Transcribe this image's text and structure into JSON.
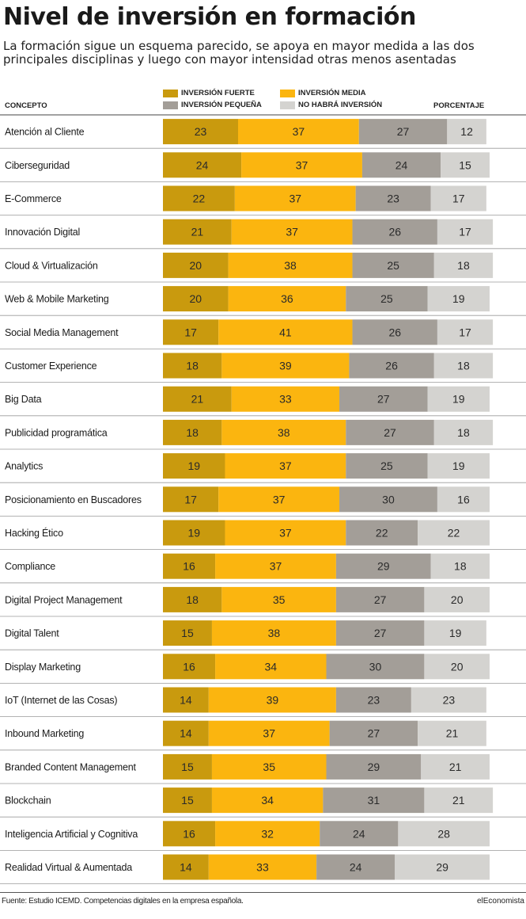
{
  "title": "Nivel de inversión en formación",
  "subtitle": "La formación sigue un esquema parecido, se apoya en mayor medida a las dos principales disciplinas y luego con mayor intensidad otras menos asentadas",
  "headers": {
    "concept": "CONCEPTO",
    "percentage": "PORCENTAJE"
  },
  "legend": [
    {
      "label": "INVERSIÓN FUERTE",
      "color": "#c99a0e"
    },
    {
      "label": "INVERSIÓN MEDIA",
      "color": "#fbb50f"
    },
    {
      "label": "INVERSIÓN PEQUEÑA",
      "color": "#a39e98"
    },
    {
      "label": "NO HABRÁ INVERSIÓN",
      "color": "#d4d3d0"
    }
  ],
  "footer": {
    "source": "Fuente: Estudio ICEMD. Competencias digitales en la empresa española.",
    "brand": "elEconomista"
  },
  "chart_data": {
    "type": "bar",
    "stacked": true,
    "orientation": "horizontal",
    "categories": [
      "Atención al Cliente",
      "Ciberseguridad",
      "E-Commerce",
      "Innovación Digital",
      "Cloud & Virtualización",
      "Web & Mobile Marketing",
      "Social Media Management",
      "Customer Experience",
      "Big Data",
      "Publicidad programática",
      "Analytics",
      "Posicionamiento en Buscadores",
      "Hacking Ético",
      "Compliance",
      "Digital Project Management",
      "Digital Talent",
      "Display Marketing",
      "IoT (Internet de las Cosas)",
      "Inbound Marketing",
      "Branded Content Management",
      "Blockchain",
      "Inteligencia Artificial y Cognitiva",
      "Realidad Virtual & Aumentada"
    ],
    "series": [
      {
        "name": "INVERSIÓN FUERTE",
        "color": "#c99a0e",
        "values": [
          23,
          24,
          22,
          21,
          20,
          20,
          17,
          18,
          21,
          18,
          19,
          17,
          19,
          16,
          18,
          15,
          16,
          14,
          14,
          15,
          15,
          16,
          14
        ]
      },
      {
        "name": "INVERSIÓN MEDIA",
        "color": "#fbb50f",
        "values": [
          37,
          37,
          37,
          37,
          38,
          36,
          41,
          39,
          33,
          38,
          37,
          37,
          37,
          37,
          35,
          38,
          34,
          39,
          37,
          35,
          34,
          32,
          33
        ]
      },
      {
        "name": "INVERSIÓN PEQUEÑA",
        "color": "#a39e98",
        "values": [
          27,
          24,
          23,
          26,
          25,
          25,
          26,
          26,
          27,
          27,
          25,
          30,
          22,
          29,
          27,
          27,
          30,
          23,
          27,
          29,
          31,
          24,
          24
        ]
      },
      {
        "name": "NO HABRÁ INVERSIÓN",
        "color": "#d4d3d0",
        "values": [
          12,
          15,
          17,
          17,
          18,
          19,
          17,
          18,
          19,
          18,
          19,
          16,
          22,
          18,
          20,
          19,
          20,
          23,
          21,
          21,
          21,
          28,
          29
        ]
      }
    ]
  }
}
